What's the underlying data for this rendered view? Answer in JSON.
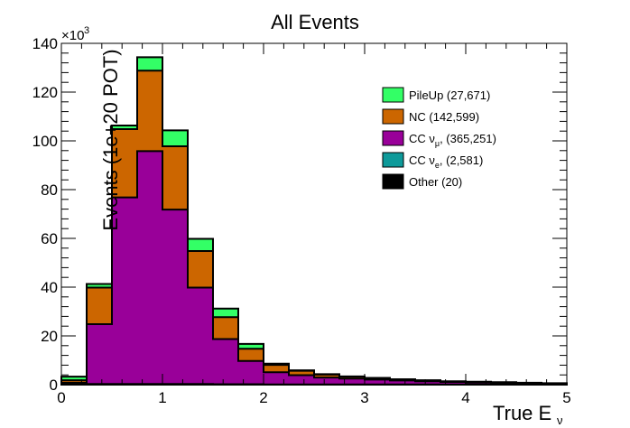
{
  "chart_data": {
    "type": "area",
    "title": "All Events",
    "xlabel": "True E",
    "xlabel_sub": "ν",
    "ylabel": "Events (1e+20 POT)",
    "y_multiplier_base": "×10",
    "y_multiplier_exp": "3",
    "xlim": [
      0,
      5
    ],
    "ylim": [
      0,
      140
    ],
    "x_ticks": [
      {
        "value": 0,
        "label": "0"
      },
      {
        "value": 1,
        "label": "1"
      },
      {
        "value": 2,
        "label": "2"
      },
      {
        "value": 3,
        "label": "3"
      },
      {
        "value": 4,
        "label": "4"
      },
      {
        "value": 5,
        "label": "5"
      }
    ],
    "y_ticks": [
      {
        "value": 0,
        "label": "0"
      },
      {
        "value": 20,
        "label": "20"
      },
      {
        "value": 40,
        "label": "40"
      },
      {
        "value": 60,
        "label": "60"
      },
      {
        "value": 80,
        "label": "80"
      },
      {
        "value": 100,
        "label": "100"
      },
      {
        "value": 120,
        "label": "120"
      },
      {
        "value": 140,
        "label": "140"
      }
    ],
    "bin_edges": [
      0,
      0.25,
      0.5,
      0.75,
      1.0,
      1.25,
      1.5,
      1.75,
      2.0,
      2.25,
      2.5,
      2.75,
      3.0,
      3.25,
      3.5,
      3.75,
      4.0,
      4.25,
      4.5,
      4.75,
      5.0
    ],
    "series": [
      {
        "label": "Other (20)",
        "color": "#000000",
        "values": [
          0,
          0,
          0,
          0,
          0,
          0,
          0,
          0,
          0,
          0,
          0,
          0,
          0,
          0,
          0,
          0,
          0,
          0,
          0,
          0
        ]
      },
      {
        "label": "CC ν",
        "sub": "e",
        "tail": ", (2,581)",
        "color": "#0e9a9a",
        "values": [
          0.3,
          0.3,
          0.3,
          0.3,
          0.3,
          0.3,
          0.2,
          0.2,
          0.1,
          0.1,
          0.1,
          0.1,
          0.1,
          0.1,
          0.1,
          0.1,
          0.1,
          0.1,
          0.1,
          0.1
        ]
      },
      {
        "label": "CC ν",
        "sub": "μ",
        "tail": ", (365,251)",
        "color": "#990099",
        "values": [
          0.5,
          24.5,
          76.5,
          95.5,
          71.5,
          39.5,
          18.5,
          9.5,
          5.0,
          3.8,
          2.8,
          2.4,
          2.0,
          1.6,
          1.3,
          1.0,
          0.8,
          0.6,
          0.5,
          0.3
        ]
      },
      {
        "label": "NC (142,599)",
        "color": "#cc6600",
        "values": [
          1.0,
          15.0,
          28.0,
          33.0,
          26.0,
          15.0,
          9.0,
          5.0,
          3.0,
          1.8,
          1.2,
          0.8,
          0.6,
          0.4,
          0.3,
          0.2,
          0.2,
          0.2,
          0.1,
          0.1
        ]
      },
      {
        "label": "PileUp (27,671)",
        "color": "#33ff66",
        "values": [
          1.5,
          1.5,
          1.5,
          5.5,
          6.5,
          5.0,
          3.5,
          2.0,
          0.5,
          0.2,
          0.2,
          0.1,
          0.1,
          0.1,
          0.1,
          0.1,
          0.1,
          0.1,
          0.1,
          0.1
        ]
      }
    ],
    "legend_order": [
      "PileUp (27,671)",
      "NC (142,599)",
      "CC νμ",
      "CC νe",
      "Other (20)"
    ],
    "legend": [
      {
        "text": "PileUp (27,671)",
        "color": "#33ff66"
      },
      {
        "text": "NC (142,599)",
        "color": "#cc6600"
      },
      {
        "text": "CC ν",
        "sub": "μ",
        "tail": ", (365,251)",
        "color": "#990099"
      },
      {
        "text": "CC ν",
        "sub": "e",
        "tail": ", (2,581)",
        "color": "#0e9a9a"
      },
      {
        "text": "Other (20)",
        "color": "#000000"
      }
    ],
    "legend_position": "top-right",
    "stacked": true,
    "grid": false
  }
}
